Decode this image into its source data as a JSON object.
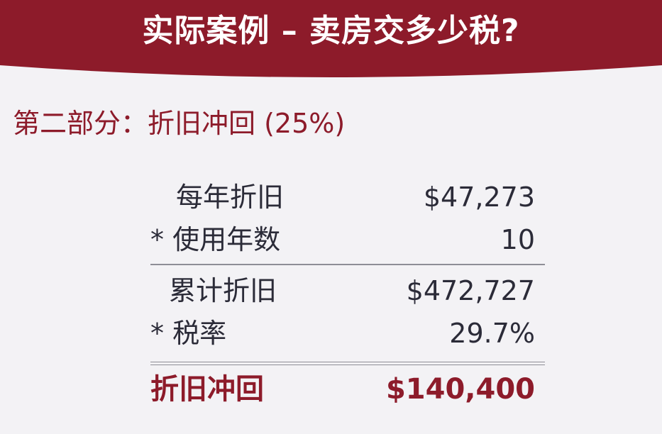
{
  "header": {
    "title": "实际案例 – 卖房交多少税?",
    "band_color": "#8d1b2a"
  },
  "section": {
    "subtitle": "第二部分：折旧冲回 (25%)"
  },
  "calculation": {
    "rows": [
      {
        "operator": "",
        "label": "每年折旧",
        "value": "$47,273"
      },
      {
        "operator": "*",
        "label": "使用年数",
        "value": "10"
      },
      {
        "operator": "",
        "label": "累计折旧",
        "value": "$472,727"
      },
      {
        "operator": "*",
        "label": "税率",
        "value": "29.7%"
      }
    ],
    "total": {
      "label": "折旧冲回",
      "value": "$140,400"
    }
  },
  "colors": {
    "accent": "#8d1b2a",
    "text": "#2b2b38",
    "background": "#f3f2f5",
    "rule": "#8e8e96"
  }
}
